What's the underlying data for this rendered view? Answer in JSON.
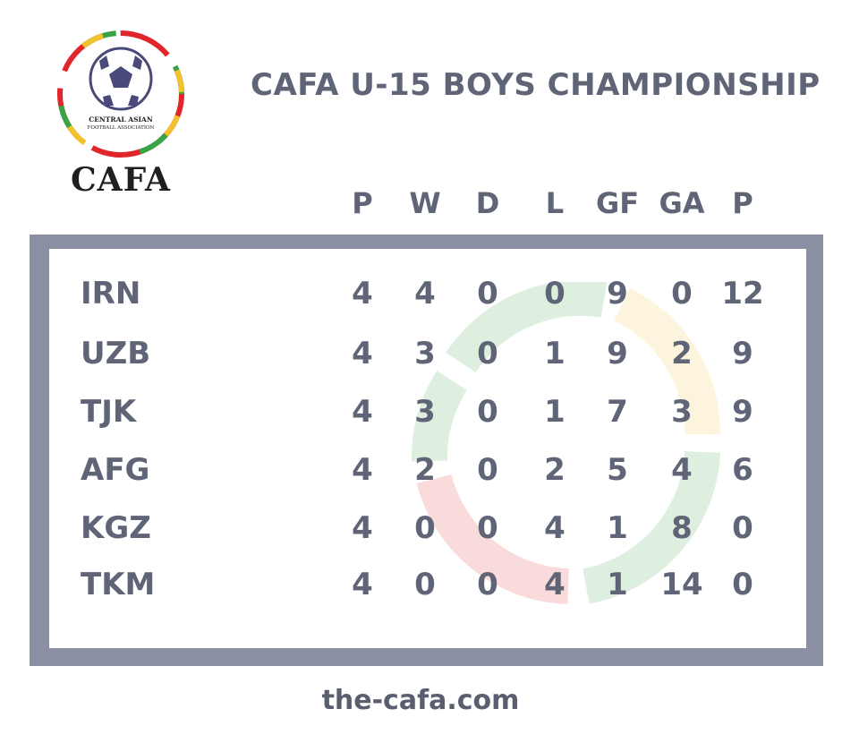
{
  "logo": {
    "icon": "cafa-ball-logo",
    "caption_small": "CENTRAL ASIAN\nFOOTBALL ASSOCIATION",
    "wordmark": "CAFA"
  },
  "title": "CAFA U-15 BOYS CHAMPIONSHIP",
  "columns": [
    "P",
    "W",
    "D",
    "L",
    "GF",
    "GA",
    "P"
  ],
  "rows": [
    {
      "team": "IRN",
      "values": [
        "4",
        "4",
        "0",
        "0",
        "9",
        "0",
        "12"
      ]
    },
    {
      "team": "UZB",
      "values": [
        "4",
        "3",
        "0",
        "1",
        "9",
        "2",
        "9"
      ]
    },
    {
      "team": "TJK",
      "values": [
        "4",
        "3",
        "0",
        "1",
        "7",
        "3",
        "9"
      ]
    },
    {
      "team": "AFG",
      "values": [
        "4",
        "2",
        "0",
        "2",
        "5",
        "4",
        "6"
      ]
    },
    {
      "team": "KGZ",
      "values": [
        "4",
        "0",
        "0",
        "4",
        "1",
        "8",
        "0"
      ]
    },
    {
      "team": "TKM",
      "values": [
        "4",
        "0",
        "0",
        "4",
        "1",
        "14",
        "0"
      ]
    }
  ],
  "footer": "the-cafa.com",
  "colors": {
    "text": "#5f6477",
    "frame": "#8b8fa3",
    "accent_green": "#3aa346",
    "accent_red": "#e0252b",
    "accent_yellow": "#f2c12e"
  }
}
